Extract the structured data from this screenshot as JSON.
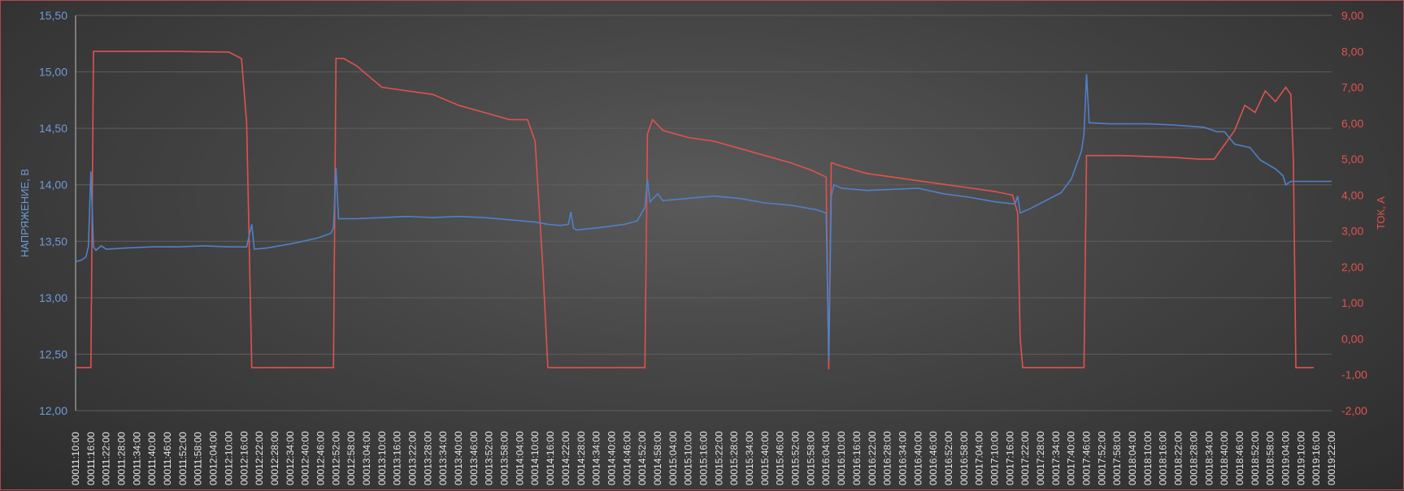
{
  "chart_data": {
    "type": "line",
    "title": "",
    "ylabel": "НАПРЯЖЕНИЕ, В",
    "y2label": "ТОК, А",
    "ylim": [
      12.0,
      15.5
    ],
    "y2lim": [
      -2.0,
      9.0
    ],
    "yticks": [
      "12,00",
      "12,50",
      "13,00",
      "13,50",
      "14,00",
      "14,50",
      "15,00",
      "15,50"
    ],
    "y2ticks": [
      "-2,00",
      "-1,00",
      "0,00",
      "1,00",
      "2,00",
      "3,00",
      "4,00",
      "5,00",
      "6,00",
      "7,00",
      "8,00",
      "9,00"
    ],
    "x_start": "00011:10:00",
    "x_end": "00019:22:00",
    "x_tick_step_minutes": 6,
    "grid": true,
    "colors": {
      "voltage": "#4f81c7",
      "current": "#e0524d"
    },
    "series": [
      {
        "axis": "left",
        "values_hhmm_v": [
          [
            670,
            13.32
          ],
          [
            672,
            13.33
          ],
          [
            674,
            13.36
          ],
          [
            675,
            13.45
          ],
          [
            676,
            14.12
          ],
          [
            677,
            13.45
          ],
          [
            678,
            13.42
          ],
          [
            680,
            13.46
          ],
          [
            682,
            13.43
          ],
          [
            690,
            13.44
          ],
          [
            700,
            13.45
          ],
          [
            710,
            13.45
          ],
          [
            720,
            13.46
          ],
          [
            730,
            13.45
          ],
          [
            737,
            13.45
          ],
          [
            738,
            13.55
          ],
          [
            739,
            13.65
          ],
          [
            740,
            13.43
          ],
          [
            745,
            13.44
          ],
          [
            755,
            13.48
          ],
          [
            765,
            13.53
          ],
          [
            770,
            13.57
          ],
          [
            771,
            13.62
          ],
          [
            772,
            14.15
          ],
          [
            773,
            13.7
          ],
          [
            780,
            13.7
          ],
          [
            790,
            13.71
          ],
          [
            800,
            13.72
          ],
          [
            810,
            13.71
          ],
          [
            820,
            13.72
          ],
          [
            830,
            13.71
          ],
          [
            840,
            13.69
          ],
          [
            850,
            13.67
          ],
          [
            855,
            13.65
          ],
          [
            860,
            13.64
          ],
          [
            863,
            13.65
          ],
          [
            864,
            13.76
          ],
          [
            865,
            13.62
          ],
          [
            866,
            13.6
          ],
          [
            875,
            13.62
          ],
          [
            885,
            13.65
          ],
          [
            890,
            13.68
          ],
          [
            893,
            13.8
          ],
          [
            894,
            14.05
          ],
          [
            895,
            13.85
          ],
          [
            898,
            13.92
          ],
          [
            900,
            13.86
          ],
          [
            910,
            13.88
          ],
          [
            920,
            13.9
          ],
          [
            930,
            13.88
          ],
          [
            940,
            13.84
          ],
          [
            950,
            13.82
          ],
          [
            960,
            13.78
          ],
          [
            964,
            13.75
          ],
          [
            965,
            12.45
          ],
          [
            966,
            13.9
          ],
          [
            967,
            14.0
          ],
          [
            970,
            13.97
          ],
          [
            980,
            13.95
          ],
          [
            990,
            13.96
          ],
          [
            1000,
            13.97
          ],
          [
            1010,
            13.92
          ],
          [
            1020,
            13.89
          ],
          [
            1030,
            13.85
          ],
          [
            1038,
            13.83
          ],
          [
            1039,
            13.9
          ],
          [
            1040,
            13.75
          ],
          [
            1044,
            13.79
          ],
          [
            1050,
            13.86
          ],
          [
            1056,
            13.93
          ],
          [
            1060,
            14.05
          ],
          [
            1064,
            14.3
          ],
          [
            1065,
            14.45
          ],
          [
            1066,
            14.98
          ],
          [
            1067,
            14.55
          ],
          [
            1075,
            14.54
          ],
          [
            1090,
            14.54
          ],
          [
            1100,
            14.53
          ],
          [
            1112,
            14.51
          ],
          [
            1117,
            14.47
          ],
          [
            1120,
            14.47
          ],
          [
            1124,
            14.36
          ],
          [
            1130,
            14.33
          ],
          [
            1134,
            14.22
          ],
          [
            1140,
            14.14
          ],
          [
            1143,
            14.08
          ],
          [
            1144,
            14.0
          ],
          [
            1146,
            14.03
          ],
          [
            1162,
            14.03
          ]
        ],
        "name": "",
        "note": ""
      },
      {
        "axis": "right",
        "values_hhmm_a": [
          [
            670,
            -0.8
          ],
          [
            676,
            -0.8
          ],
          [
            677,
            8.0
          ],
          [
            690,
            8.0
          ],
          [
            710,
            8.0
          ],
          [
            730,
            7.98
          ],
          [
            735,
            7.8
          ],
          [
            737,
            6.0
          ],
          [
            739,
            -0.8
          ],
          [
            771,
            -0.8
          ],
          [
            772,
            7.8
          ],
          [
            775,
            7.8
          ],
          [
            780,
            7.6
          ],
          [
            785,
            7.3
          ],
          [
            790,
            7.0
          ],
          [
            800,
            6.9
          ],
          [
            810,
            6.8
          ],
          [
            820,
            6.5
          ],
          [
            830,
            6.3
          ],
          [
            840,
            6.1
          ],
          [
            847,
            6.1
          ],
          [
            850,
            5.5
          ],
          [
            853,
            2.0
          ],
          [
            855,
            -0.8
          ],
          [
            893,
            -0.8
          ],
          [
            894,
            5.7
          ],
          [
            896,
            6.1
          ],
          [
            900,
            5.8
          ],
          [
            910,
            5.6
          ],
          [
            920,
            5.5
          ],
          [
            930,
            5.3
          ],
          [
            940,
            5.1
          ],
          [
            950,
            4.9
          ],
          [
            958,
            4.7
          ],
          [
            964,
            4.5
          ],
          [
            965,
            -0.85
          ],
          [
            966,
            4.9
          ],
          [
            970,
            4.8
          ],
          [
            980,
            4.6
          ],
          [
            990,
            4.5
          ],
          [
            1000,
            4.4
          ],
          [
            1010,
            4.3
          ],
          [
            1020,
            4.2
          ],
          [
            1030,
            4.1
          ],
          [
            1037,
            4.0
          ],
          [
            1039,
            3.5
          ],
          [
            1040,
            0.0
          ],
          [
            1041,
            -0.8
          ],
          [
            1065,
            -0.8
          ],
          [
            1066,
            5.1
          ],
          [
            1080,
            5.1
          ],
          [
            1100,
            5.05
          ],
          [
            1110,
            5.0
          ],
          [
            1116,
            5.0
          ],
          [
            1120,
            5.4
          ],
          [
            1124,
            5.8
          ],
          [
            1128,
            6.5
          ],
          [
            1132,
            6.3
          ],
          [
            1136,
            6.9
          ],
          [
            1140,
            6.6
          ],
          [
            1144,
            7.0
          ],
          [
            1146,
            6.8
          ],
          [
            1147,
            5.0
          ],
          [
            1148,
            -0.8
          ],
          [
            1155,
            -0.8
          ]
        ],
        "name": "",
        "note": ""
      }
    ]
  }
}
